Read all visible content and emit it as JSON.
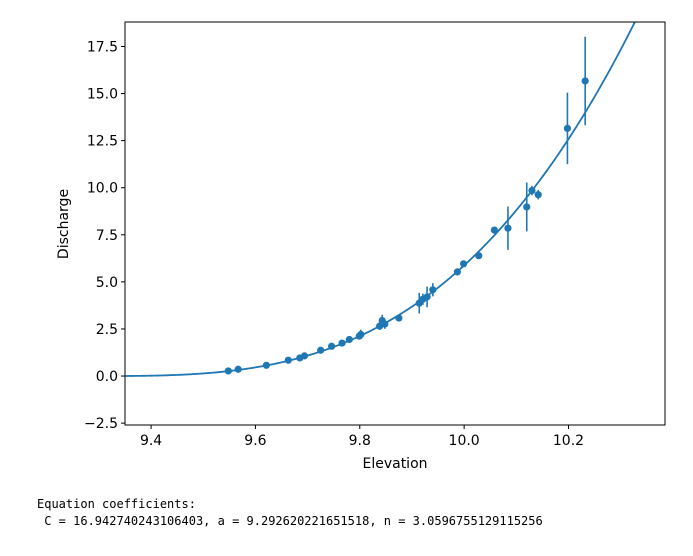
{
  "chart_data": {
    "type": "scatter",
    "xlabel": "Elevation",
    "ylabel": "Discharge",
    "xlim": [
      9.35,
      10.385
    ],
    "ylim": [
      -2.6,
      18.8
    ],
    "x_ticks": [
      {
        "value": 9.4,
        "label": "9.4"
      },
      {
        "value": 9.6,
        "label": "9.6"
      },
      {
        "value": 9.8,
        "label": "9.8"
      },
      {
        "value": 10.0,
        "label": "10.0"
      },
      {
        "value": 10.2,
        "label": "10.2"
      }
    ],
    "y_ticks": [
      {
        "value": -2.5,
        "label": "−2.5"
      },
      {
        "value": 0.0,
        "label": "0.0"
      },
      {
        "value": 2.5,
        "label": "2.5"
      },
      {
        "value": 5.0,
        "label": "5.0"
      },
      {
        "value": 7.5,
        "label": "7.5"
      },
      {
        "value": 10.0,
        "label": "10.0"
      },
      {
        "value": 12.5,
        "label": "12.5"
      },
      {
        "value": 15.0,
        "label": "15.0"
      },
      {
        "value": 17.5,
        "label": "17.5"
      }
    ],
    "grid": false,
    "color": "#1f77b4",
    "points": [
      {
        "x": 9.548,
        "y": 0.27,
        "err": 0.0
      },
      {
        "x": 9.567,
        "y": 0.36,
        "err": 0.0
      },
      {
        "x": 9.621,
        "y": 0.57,
        "err": 0.0
      },
      {
        "x": 9.663,
        "y": 0.84,
        "err": 0.0
      },
      {
        "x": 9.685,
        "y": 0.96,
        "err": 0.0
      },
      {
        "x": 9.694,
        "y": 1.07,
        "err": 0.0
      },
      {
        "x": 9.725,
        "y": 1.37,
        "err": 0.0
      },
      {
        "x": 9.746,
        "y": 1.58,
        "err": 0.0
      },
      {
        "x": 9.766,
        "y": 1.75,
        "err": 0.0
      },
      {
        "x": 9.78,
        "y": 1.94,
        "err": 0.0
      },
      {
        "x": 9.799,
        "y": 2.12,
        "err": 0.0
      },
      {
        "x": 9.802,
        "y": 2.21,
        "err": 0.25
      },
      {
        "x": 9.838,
        "y": 2.65,
        "err": 0.2
      },
      {
        "x": 9.843,
        "y": 2.95,
        "err": 0.3
      },
      {
        "x": 9.848,
        "y": 2.76,
        "err": 0.25
      },
      {
        "x": 9.875,
        "y": 3.08,
        "err": 0.0
      },
      {
        "x": 9.914,
        "y": 3.87,
        "err": 0.55
      },
      {
        "x": 9.921,
        "y": 4.08,
        "err": 0.3
      },
      {
        "x": 9.929,
        "y": 4.2,
        "err": 0.55
      },
      {
        "x": 9.94,
        "y": 4.58,
        "err": 0.35
      },
      {
        "x": 9.987,
        "y": 5.53,
        "err": 0.0
      },
      {
        "x": 9.999,
        "y": 5.96,
        "err": 0.0
      },
      {
        "x": 10.028,
        "y": 6.39,
        "err": 0.0
      },
      {
        "x": 10.058,
        "y": 7.75,
        "err": 0.0
      },
      {
        "x": 10.084,
        "y": 7.85,
        "err": 1.15
      },
      {
        "x": 10.12,
        "y": 8.98,
        "err": 1.3
      },
      {
        "x": 10.13,
        "y": 9.85,
        "err": 0.25
      },
      {
        "x": 10.142,
        "y": 9.63,
        "err": 0.25
      },
      {
        "x": 10.198,
        "y": 13.15,
        "err": 1.9
      },
      {
        "x": 10.232,
        "y": 15.67,
        "err": 2.35
      }
    ],
    "fit": {
      "C": 16.942740243106403,
      "a": 9.292620221651518,
      "n": 3.0596755129115256,
      "x_range": [
        9.35,
        10.33
      ]
    }
  },
  "equation": {
    "title": "Equation coefficients:",
    "values": " C = 16.942740243106403, a = 9.292620221651518, n = 3.0596755129115256"
  }
}
